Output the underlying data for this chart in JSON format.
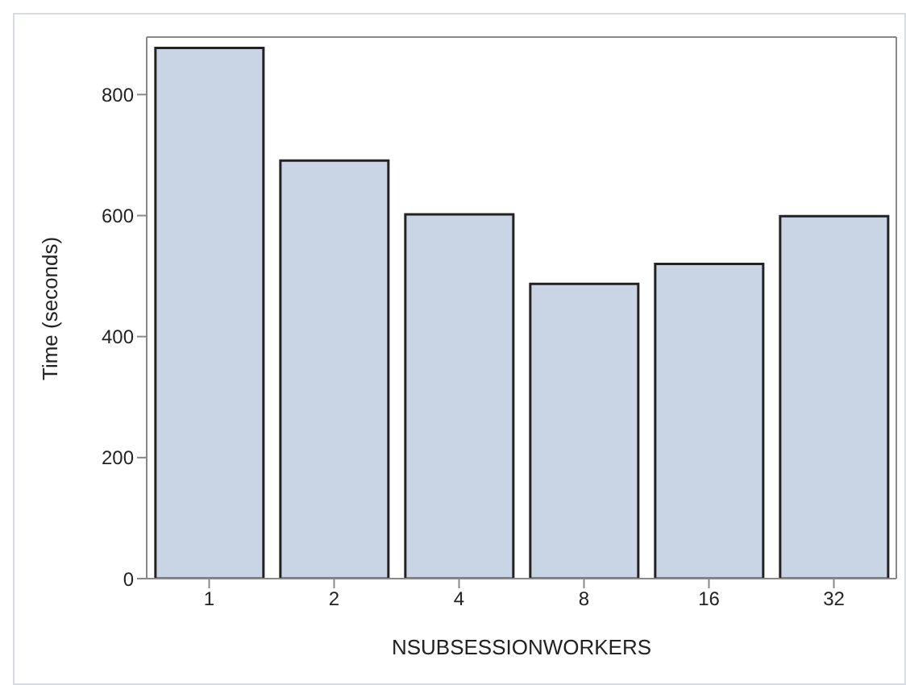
{
  "chart_data": {
    "type": "bar",
    "xlabel": "NSUBSESSIONWORKERS",
    "ylabel": "Time (seconds)",
    "categories": [
      "1",
      "2",
      "4",
      "8",
      "16",
      "32"
    ],
    "values": [
      877,
      691,
      602,
      487,
      520,
      599
    ],
    "color": "#c9d4e4",
    "ylim": [
      0,
      895
    ],
    "yticks": [
      0,
      200,
      400,
      600,
      800
    ],
    "grid": false,
    "legend": false
  }
}
